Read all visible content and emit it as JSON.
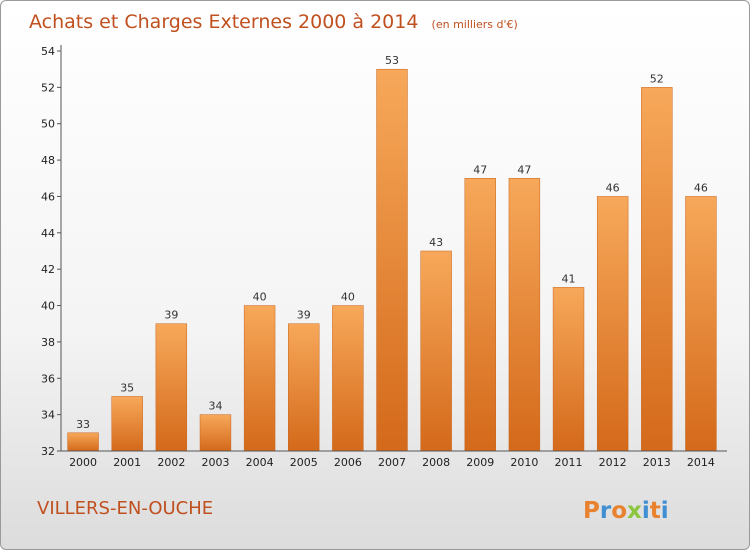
{
  "chart_data": {
    "type": "bar",
    "title": "Achats et Charges Externes 2000 à 2014",
    "unit_label": "(en milliers d'€)",
    "xlabel": "",
    "ylabel": "",
    "categories": [
      "2000",
      "2001",
      "2002",
      "2003",
      "2004",
      "2005",
      "2006",
      "2007",
      "2008",
      "2009",
      "2010",
      "2011",
      "2012",
      "2013",
      "2014"
    ],
    "values": [
      33,
      35,
      39,
      34,
      40,
      39,
      40,
      53,
      43,
      47,
      47,
      41,
      46,
      52,
      46
    ],
    "ylim": [
      32,
      54
    ],
    "yticks": [
      32,
      34,
      36,
      38,
      40,
      42,
      44,
      46,
      48,
      50,
      52,
      54
    ],
    "grid": false,
    "legend": "none",
    "bar_color": "#e8822e"
  },
  "place_name": "VILLERS-EN-OUCHE",
  "logo": {
    "text": "Proxiti",
    "letters": [
      {
        "ch": "P",
        "color": "#e8822e"
      },
      {
        "ch": "r",
        "color": "#3f8fd2"
      },
      {
        "ch": "o",
        "color": "#e8822e"
      },
      {
        "ch": "x",
        "color": "#8cc63f"
      },
      {
        "ch": "i",
        "color": "#3f8fd2"
      },
      {
        "ch": "t",
        "color": "#e8822e"
      },
      {
        "ch": "i",
        "color": "#3f8fd2"
      }
    ]
  }
}
